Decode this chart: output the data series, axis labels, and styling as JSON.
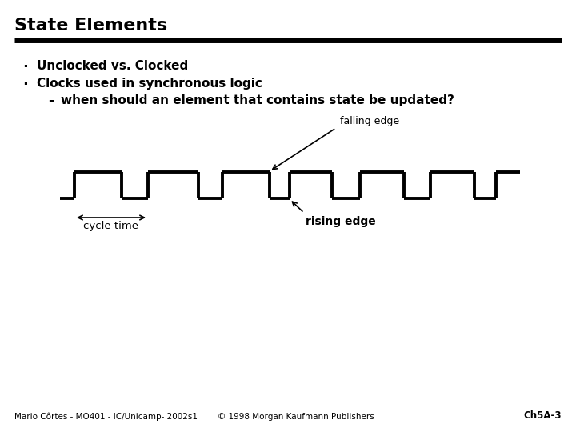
{
  "title": "State Elements",
  "bullet1": "Unclocked vs. Clocked",
  "bullet2": "Clocks used in synchronous logic",
  "bullet3": "when should an element that contains state be updated?",
  "label_falling": "falling edge",
  "label_rising": "rising edge",
  "label_cycle": "cycle time",
  "footer_left": "Mario Côrtes - MO401 - IC/Unicamp- 2002s1",
  "footer_center": "© 1998 Morgan Kaufmann Publishers",
  "footer_right": "Ch5A-3",
  "bg_color": "#ffffff",
  "text_color": "#000000",
  "line_color": "#000000",
  "title_fontsize": 16,
  "bullet_fontsize": 11,
  "sub_bullet_fontsize": 11,
  "label_fontsize": 9,
  "footer_fontsize": 7.5
}
